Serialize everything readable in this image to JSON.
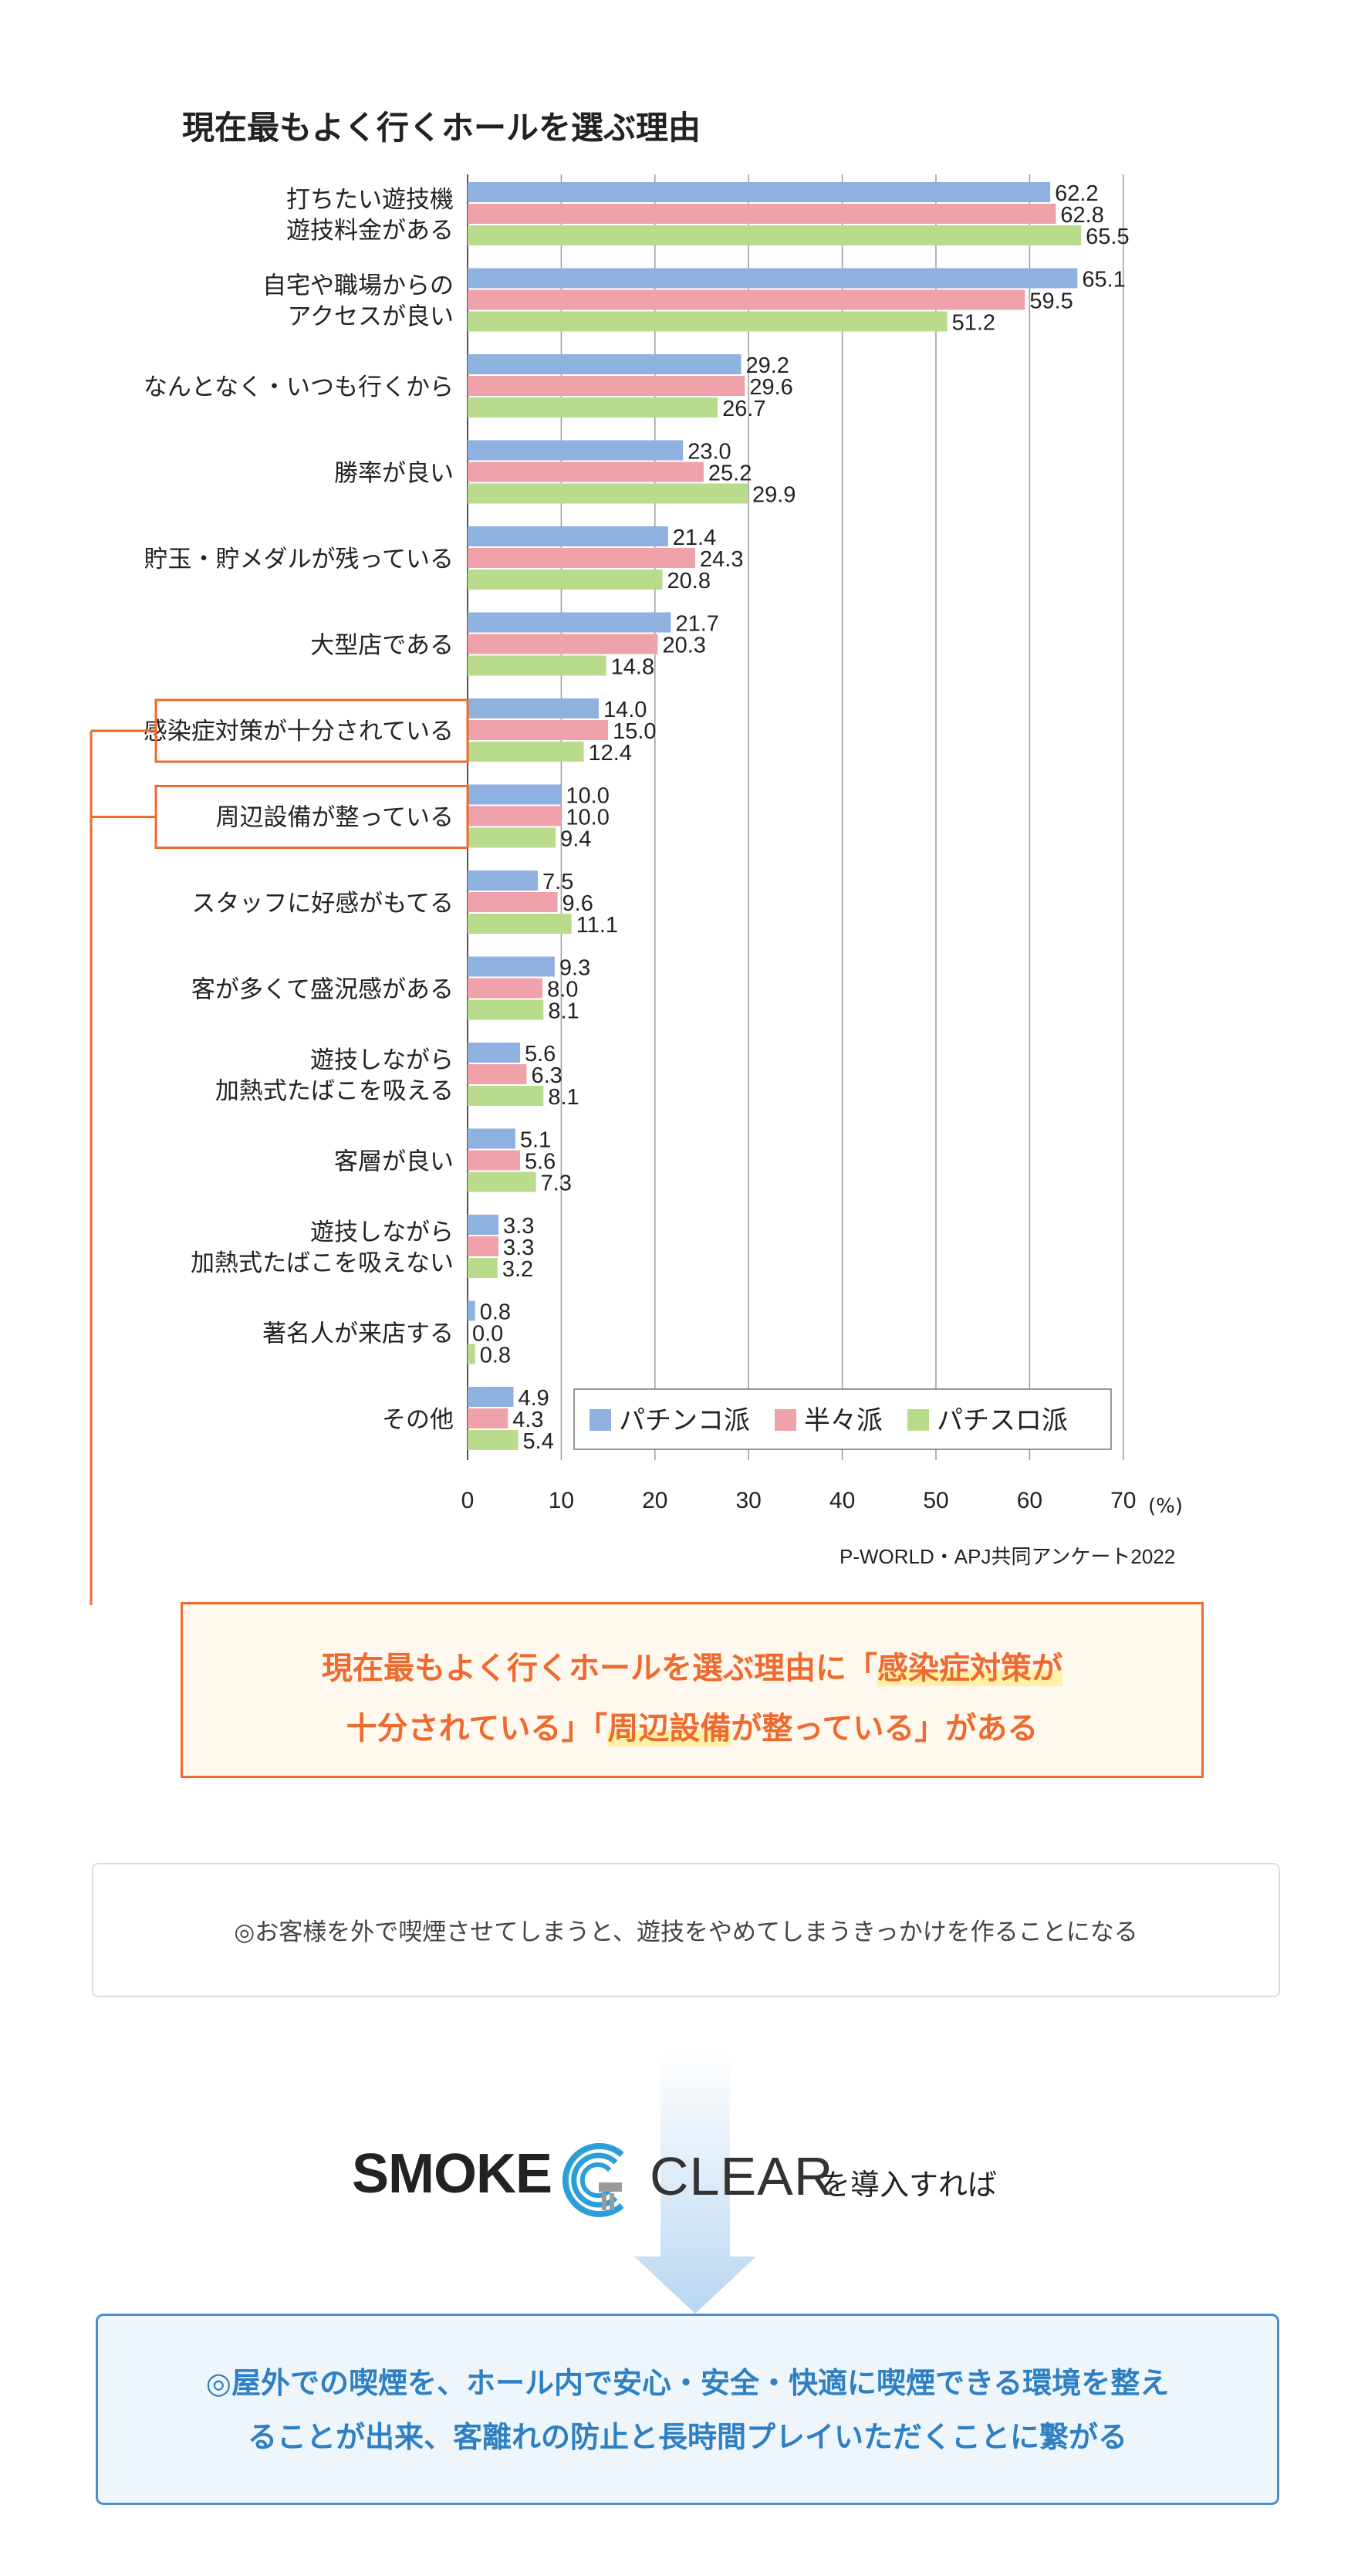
{
  "chart_data": {
    "type": "bar",
    "orientation": "horizontal",
    "title": "現在最もよく行くホールを選ぶ理由",
    "categories": [
      [
        "打ちたい遊技機",
        "遊技料金がある"
      ],
      [
        "自宅や職場からの",
        "アクセスが良い"
      ],
      [
        "なんとなく・いつも行くから"
      ],
      [
        "勝率が良い"
      ],
      [
        "貯玉・貯メダルが残っている"
      ],
      [
        "大型店である"
      ],
      [
        "感染症対策が十分されている"
      ],
      [
        "周辺設備が整っている"
      ],
      [
        "スタッフに好感がもてる"
      ],
      [
        "客が多くて盛況感がある"
      ],
      [
        "遊技しながら",
        "加熱式たばこを吸える"
      ],
      [
        "客層が良い"
      ],
      [
        "遊技しながら",
        "加熱式たばこを吸えない"
      ],
      [
        "著名人が来店する"
      ],
      [
        "その他"
      ]
    ],
    "highlighted_categories": [
      6,
      7
    ],
    "series": [
      {
        "name": "パチンコ派",
        "color": "#8fb1e0",
        "values": [
          62.2,
          65.1,
          29.2,
          23.0,
          21.4,
          21.7,
          14.0,
          10.0,
          7.5,
          9.3,
          5.6,
          5.1,
          3.3,
          0.8,
          4.9
        ]
      },
      {
        "name": "半々派",
        "color": "#f0a2aa",
        "values": [
          62.8,
          59.5,
          29.6,
          25.2,
          24.3,
          20.3,
          15.0,
          10.0,
          9.6,
          8.0,
          6.3,
          5.6,
          3.3,
          0.0,
          4.3
        ]
      },
      {
        "name": "パチスロ派",
        "color": "#b9db8c",
        "values": [
          65.5,
          51.2,
          26.7,
          29.9,
          20.8,
          14.8,
          12.4,
          9.4,
          11.1,
          8.1,
          8.1,
          7.3,
          3.2,
          0.8,
          5.4
        ]
      }
    ],
    "xlim": [
      0,
      70
    ],
    "xticks": [
      0,
      10,
      20,
      30,
      40,
      50,
      60,
      70
    ],
    "x_unit": "(%)",
    "grid": true,
    "legend_position": "bottom-right",
    "source": "P-WORLD・APJ共同アンケート2022"
  },
  "conclusion": {
    "p1": "現在最もよく行くホールを選ぶ理由に「",
    "h1": "感染症対策が",
    "p2": "十分されている」「",
    "h2": "周辺設備",
    "p3": "が整っている」がある"
  },
  "quote": "◎お客様を外で喫煙させてしまうと、遊技をやめてしまうきっかけを作ることになる",
  "brand": {
    "smoke": "SMOKE",
    "clear": "CLEAR",
    "suffix": "を導入すれば"
  },
  "result": {
    "line1": "◎屋外での喫煙を、ホール内で安心・安全・快適に喫煙できる環境を整え",
    "line2": "ることが出来、客離れの防止と長時間プレイいただくことに繋がる"
  },
  "colors": {
    "accent": "#ee6a2e",
    "result_blue": "#2f80c3",
    "arrow": "#b9d7f1"
  }
}
